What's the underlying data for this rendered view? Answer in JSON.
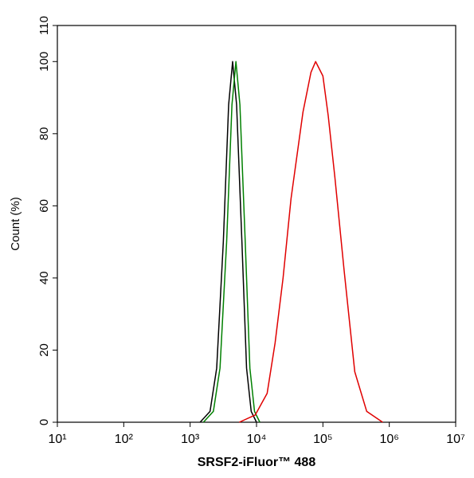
{
  "chart_data": {
    "type": "line",
    "xlabel": "SRSF2-iFluor™ 488",
    "ylabel": "Count  (%)",
    "xscale": "log",
    "xlim": [
      10,
      10000000
    ],
    "xticks": [
      {
        "value": 10,
        "label": "10¹"
      },
      {
        "value": 100,
        "label": "10²"
      },
      {
        "value": 1000,
        "label": "10³"
      },
      {
        "value": 10000,
        "label": "10⁴"
      },
      {
        "value": 100000,
        "label": "10⁵"
      },
      {
        "value": 1000000,
        "label": "10⁶"
      },
      {
        "value": 10000000,
        "label": "10⁷"
      }
    ],
    "ylim": [
      0,
      110
    ],
    "yticks": [
      0,
      20,
      40,
      60,
      80,
      100,
      110
    ],
    "series": [
      {
        "color": "#000000",
        "x": [
          1413,
          1995,
          2512,
          3162,
          3802,
          4365,
          5012,
          6026,
          7079,
          8318,
          10000
        ],
        "values": [
          0,
          3,
          15,
          50,
          88,
          100,
          88,
          50,
          15,
          3,
          0
        ]
      },
      {
        "color": "#008000",
        "x": [
          1585,
          2239,
          2818,
          3548,
          4266,
          4898,
          5623,
          6761,
          7943,
          9333,
          11220
        ],
        "values": [
          0,
          3,
          15,
          50,
          88,
          100,
          88,
          50,
          15,
          3,
          0
        ]
      },
      {
        "color": "#e00000",
        "x": [
          5495,
          9550,
          14454,
          19055,
          25119,
          33113,
          50119,
          66069,
          77625,
          100000,
          120226,
          151356,
          208930,
          301995,
          457088,
          794328
        ],
        "values": [
          0,
          2,
          8,
          22,
          40,
          62,
          86,
          97,
          100,
          96,
          85,
          68,
          42,
          14,
          3,
          0
        ]
      }
    ]
  }
}
